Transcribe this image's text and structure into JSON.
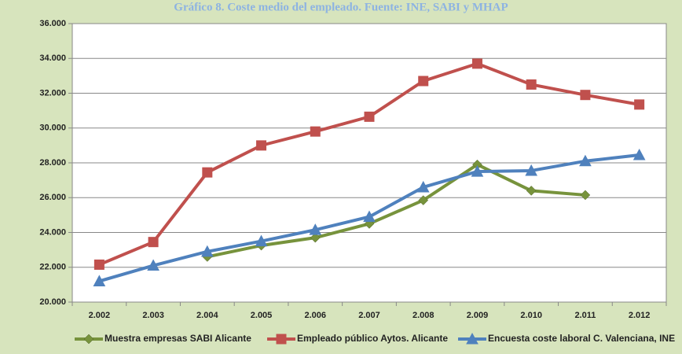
{
  "chart_data": {
    "type": "line",
    "title": "Gráfico 8. Coste medio del empleado. Fuente: INE, SABI y MHAP",
    "categories": [
      "2.002",
      "2.003",
      "2.004",
      "2.005",
      "2.006",
      "2.007",
      "2.008",
      "2.009",
      "2.010",
      "2.011",
      "2.012"
    ],
    "series": [
      {
        "name": "Muestra empresas SABI Alicante",
        "color": "#77933c",
        "marker": "diamond",
        "values": [
          null,
          null,
          22600,
          23250,
          23700,
          24500,
          25850,
          27900,
          26400,
          26150,
          null
        ]
      },
      {
        "name": "Empleado público Aytos. Alicante",
        "color": "#c0504d",
        "marker": "square",
        "values": [
          22150,
          23450,
          27450,
          29000,
          29800,
          30650,
          32700,
          33700,
          32500,
          31900,
          31350
        ]
      },
      {
        "name": "Encuesta coste laboral C. Valenciana, INE",
        "color": "#4f81bd",
        "marker": "triangle",
        "values": [
          21200,
          22100,
          22900,
          23500,
          24150,
          24900,
          26600,
          27500,
          27550,
          28100,
          28450
        ]
      }
    ],
    "ylim": [
      20000,
      36000
    ],
    "yticks": [
      {
        "value": 20000,
        "label": "20.000"
      },
      {
        "value": 22000,
        "label": "22.000"
      },
      {
        "value": 24000,
        "label": "24.000"
      },
      {
        "value": 26000,
        "label": "26.000"
      },
      {
        "value": 28000,
        "label": "28.000"
      },
      {
        "value": 30000,
        "label": "30.000"
      },
      {
        "value": 32000,
        "label": "32.000"
      },
      {
        "value": 34000,
        "label": "34.000"
      },
      {
        "value": 36000,
        "label": "36.000"
      }
    ],
    "grid": true,
    "legend": "bottom"
  }
}
